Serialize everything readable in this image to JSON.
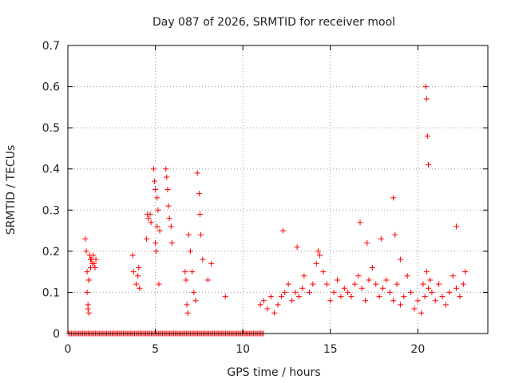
{
  "chart_data": {
    "type": "scatter",
    "title": "Day 087 of 2026, SRMTID for receiver mool",
    "xlabel": "GPS time / hours",
    "ylabel": "SRMTID / TECUs",
    "xlim": [
      0,
      24
    ],
    "ylim": [
      0,
      0.7
    ],
    "xticks": [
      0,
      5,
      10,
      15,
      20
    ],
    "xtick_labels": [
      "0",
      "5",
      "10",
      "15",
      "20"
    ],
    "yticks": [
      0,
      0.1,
      0.2,
      0.3,
      0.4,
      0.5,
      0.6,
      0.7
    ],
    "ytick_labels": [
      "0",
      "0.1",
      "0.2",
      "0.3",
      "0.4",
      "0.5",
      "0.6",
      "0.7"
    ],
    "grid": true,
    "marker": "+",
    "marker_color": "#ff0000",
    "zero_band": {
      "x_start": 0.05,
      "x_end": 11.2,
      "y": 0
    },
    "series": [
      {
        "name": "SRMTID",
        "x": [
          1.0,
          1.05,
          1.1,
          1.1,
          1.15,
          1.2,
          1.2,
          1.25,
          1.3,
          1.35,
          1.4,
          1.45,
          1.5,
          1.55,
          1.6,
          1.15,
          1.2,
          1.3,
          3.7,
          3.75,
          3.9,
          4.0,
          4.05,
          4.1,
          4.5,
          4.55,
          4.6,
          4.7,
          4.75,
          4.9,
          4.95,
          5.0,
          5.0,
          5.05,
          5.1,
          5.1,
          5.15,
          5.2,
          5.25,
          5.6,
          5.65,
          5.7,
          5.75,
          5.8,
          5.9,
          5.95,
          6.7,
          6.75,
          6.8,
          6.85,
          6.9,
          7.0,
          7.1,
          7.2,
          7.3,
          7.4,
          7.5,
          7.55,
          7.6,
          7.7,
          8.0,
          8.2,
          9.0,
          11.0,
          11.2,
          11.4,
          11.6,
          11.8,
          12.0,
          12.2,
          12.4,
          12.6,
          12.8,
          13.0,
          13.2,
          13.4,
          13.5,
          13.8,
          14.0,
          14.2,
          14.4,
          14.6,
          14.8,
          15.0,
          15.2,
          15.4,
          15.6,
          15.8,
          16.0,
          16.2,
          16.4,
          16.6,
          16.8,
          17.0,
          17.2,
          17.4,
          17.6,
          17.8,
          18.0,
          18.2,
          18.4,
          18.6,
          18.8,
          19.0,
          19.2,
          19.4,
          19.6,
          19.8,
          20.0,
          20.2,
          20.3,
          20.4,
          20.5,
          20.6,
          20.7,
          20.8,
          21.0,
          21.2,
          21.4,
          21.6,
          21.8,
          22.0,
          22.2,
          22.4,
          22.6,
          22.7,
          16.7,
          17.1,
          18.6,
          18.7,
          20.45,
          20.5,
          20.55,
          20.6,
          12.3,
          13.1,
          14.3,
          22.2,
          19.0,
          17.9
        ],
        "y": [
          0.23,
          0.2,
          0.15,
          0.1,
          0.07,
          0.05,
          0.13,
          0.19,
          0.16,
          0.18,
          0.17,
          0.19,
          0.17,
          0.16,
          0.18,
          0.06,
          0.13,
          0.18,
          0.19,
          0.15,
          0.12,
          0.14,
          0.16,
          0.11,
          0.23,
          0.29,
          0.28,
          0.29,
          0.27,
          0.4,
          0.37,
          0.35,
          0.22,
          0.2,
          0.26,
          0.33,
          0.3,
          0.12,
          0.25,
          0.4,
          0.38,
          0.35,
          0.31,
          0.28,
          0.26,
          0.22,
          0.15,
          0.13,
          0.07,
          0.05,
          0.24,
          0.2,
          0.15,
          0.1,
          0.08,
          0.39,
          0.34,
          0.29,
          0.24,
          0.18,
          0.13,
          0.17,
          0.09,
          0.07,
          0.08,
          0.06,
          0.09,
          0.05,
          0.07,
          0.09,
          0.1,
          0.12,
          0.08,
          0.1,
          0.09,
          0.11,
          0.14,
          0.1,
          0.12,
          0.17,
          0.19,
          0.15,
          0.12,
          0.08,
          0.1,
          0.13,
          0.09,
          0.11,
          0.1,
          0.09,
          0.12,
          0.14,
          0.11,
          0.08,
          0.13,
          0.16,
          0.12,
          0.09,
          0.11,
          0.13,
          0.1,
          0.08,
          0.12,
          0.07,
          0.09,
          0.14,
          0.1,
          0.06,
          0.08,
          0.05,
          0.12,
          0.09,
          0.15,
          0.11,
          0.13,
          0.1,
          0.08,
          0.12,
          0.09,
          0.07,
          0.1,
          0.14,
          0.11,
          0.09,
          0.12,
          0.15,
          0.27,
          0.22,
          0.33,
          0.24,
          0.6,
          0.57,
          0.48,
          0.41,
          0.25,
          0.21,
          0.2,
          0.26,
          0.18,
          0.23
        ]
      }
    ]
  }
}
